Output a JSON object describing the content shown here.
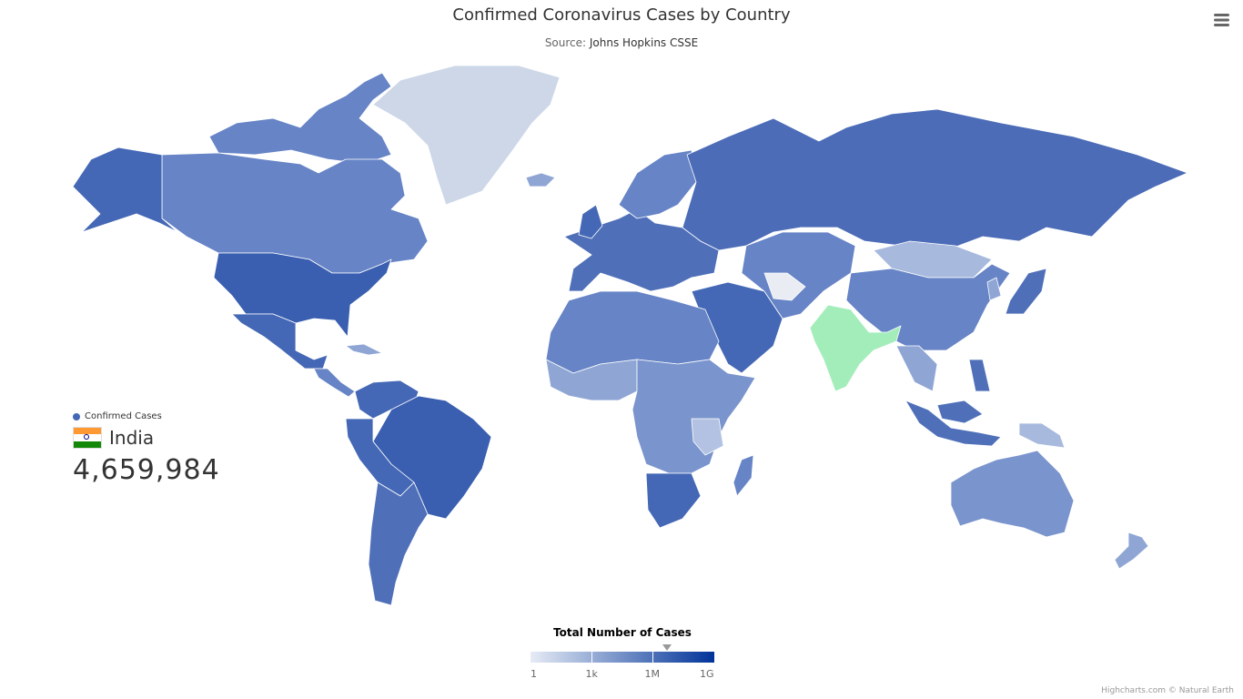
{
  "title": "Confirmed Coronavirus Cases by Country",
  "subtitle_prefix": "Source: ",
  "subtitle_source": "Johns Hopkins CSSE",
  "menu_icon": "hamburger-menu-icon",
  "info": {
    "series_name": "Confirmed Cases",
    "country": "India",
    "flag_icon": "india-flag-icon",
    "value": "4,659,984"
  },
  "color_axis": {
    "title": "Total Number of Cases",
    "labels": [
      "1",
      "1k",
      "1M",
      "1G"
    ],
    "min_color": "#e6ebf5",
    "max_color": "#003399",
    "highlight_value": 4659984
  },
  "colors": {
    "highlight": "#a3edba",
    "high": "#4468b5",
    "mid": "#6684c6",
    "low": "#8fa6d5",
    "lowest": "#cdd7e8"
  },
  "credits": "Highcharts.com © Natural Earth"
}
